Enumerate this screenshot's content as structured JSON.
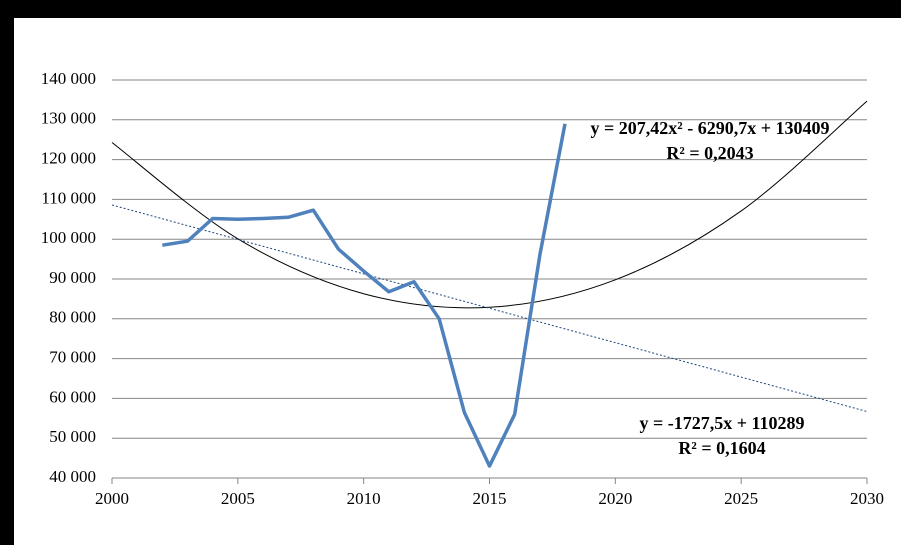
{
  "chart_data": {
    "type": "line",
    "x": [
      2002,
      2003,
      2004,
      2005,
      2006,
      2007,
      2008,
      2009,
      2010,
      2011,
      2012,
      2013,
      2014,
      2015,
      2016,
      2017,
      2018
    ],
    "series": [
      {
        "color": "#4f81bd",
        "values": [
          98500,
          99500,
          105200,
          105000,
          105200,
          105500,
          107300,
          97500,
          92000,
          86800,
          89300,
          80000,
          56500,
          43000,
          56000,
          96000,
          129000
        ]
      }
    ],
    "trendlines": [
      {
        "kind": "polynomial",
        "color": "#000000",
        "x": [
          2000,
          2005,
          2010,
          2015,
          2020,
          2025,
          2030
        ],
        "values": [
          124300,
          100100,
          86300,
          82900,
          89800,
          107100,
          134700
        ],
        "equation": "y = 207,42x² - 6290,7x + 130409",
        "r2": "R² = 0,2043"
      },
      {
        "kind": "linear",
        "color": "#1f497d",
        "x": [
          2000,
          2030
        ],
        "values": [
          108600,
          56700
        ],
        "equation": "y = -1727,5x + 110289",
        "r2": "R² = 0,1604"
      }
    ],
    "xlim": [
      2000,
      2030
    ],
    "xticks": [
      2000,
      2005,
      2010,
      2015,
      2020,
      2025,
      2030
    ],
    "ylim": [
      40000,
      140000
    ],
    "yticks": [
      {
        "value": 40000,
        "label": "40 000"
      },
      {
        "value": 50000,
        "label": "50 000"
      },
      {
        "value": 60000,
        "label": "60 000"
      },
      {
        "value": 70000,
        "label": "70 000"
      },
      {
        "value": 80000,
        "label": "80 000"
      },
      {
        "value": 90000,
        "label": "90 000"
      },
      {
        "value": 100000,
        "label": "100 000"
      },
      {
        "value": 110000,
        "label": "110 000"
      },
      {
        "value": 120000,
        "label": "120 000"
      },
      {
        "value": 130000,
        "label": "130 000"
      },
      {
        "value": 140000,
        "label": "140 000"
      }
    ],
    "grid": true
  }
}
